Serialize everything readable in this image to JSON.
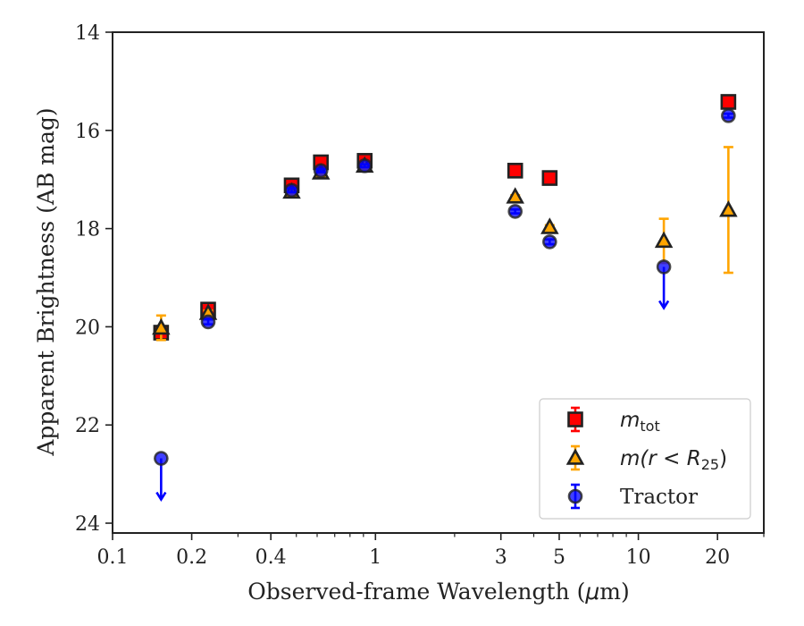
{
  "chart_data": {
    "type": "scatter",
    "title": "",
    "xlabel": "Observed-frame Wavelength (μm)",
    "xlabel_parts": {
      "before": "Observed-frame Wavelength (",
      "mu": "μ",
      "after": "m)"
    },
    "ylabel": "Apparent Brightness (AB mag)",
    "xscale": "log",
    "xlim": [
      0.1,
      30
    ],
    "ylim": [
      24.2,
      14
    ],
    "y_inverted": true,
    "x_ticks": [
      {
        "value": 0.1,
        "label": "0.1"
      },
      {
        "value": 0.2,
        "label": "0.2"
      },
      {
        "value": 0.4,
        "label": "0.4"
      },
      {
        "value": 1,
        "label": "1"
      },
      {
        "value": 3,
        "label": "3"
      },
      {
        "value": 5,
        "label": "5"
      },
      {
        "value": 10,
        "label": "10"
      },
      {
        "value": 20,
        "label": "20"
      }
    ],
    "y_ticks": [
      {
        "value": 14,
        "label": "14"
      },
      {
        "value": 16,
        "label": "16"
      },
      {
        "value": 18,
        "label": "18"
      },
      {
        "value": 20,
        "label": "20"
      },
      {
        "value": 22,
        "label": "22"
      },
      {
        "value": 24,
        "label": "24"
      }
    ],
    "grid": false,
    "legend_position": "lower-right",
    "series": [
      {
        "key": "mtot",
        "legend": {
          "base": "m",
          "sub": "tot",
          "text": ""
        },
        "marker": "square",
        "face_color": "#ff0000",
        "edge_color": "#222222",
        "error_color": "#ff0000",
        "points": [
          {
            "x": 0.153,
            "y": 20.12,
            "err": 0.12
          },
          {
            "x": 0.231,
            "y": 19.65,
            "err": 0.08
          },
          {
            "x": 0.48,
            "y": 17.12,
            "err": 0.05
          },
          {
            "x": 0.62,
            "y": 16.65,
            "err": 0.04
          },
          {
            "x": 0.91,
            "y": 16.62,
            "err": 0.04
          },
          {
            "x": 3.4,
            "y": 16.82,
            "err": 0.03
          },
          {
            "x": 4.6,
            "y": 16.97,
            "err": 0.03
          },
          {
            "x": 22.0,
            "y": 15.42,
            "err": 0.04
          }
        ]
      },
      {
        "key": "mr25",
        "legend": {
          "base": "m",
          "sub": "",
          "text": "(r < R",
          "sub2": "25",
          "close": ")"
        },
        "marker": "triangle",
        "face_color": "#ffa500",
        "edge_color": "#222222",
        "error_color": "#ffa500",
        "points": [
          {
            "x": 0.153,
            "y": 20.02,
            "err": 0.25
          },
          {
            "x": 0.231,
            "y": 19.72,
            "err": 0.05
          },
          {
            "x": 0.48,
            "y": 17.25,
            "err": 0.04
          },
          {
            "x": 0.62,
            "y": 16.86,
            "err": 0.03
          },
          {
            "x": 0.91,
            "y": 16.72,
            "err": 0.03
          },
          {
            "x": 3.4,
            "y": 17.35,
            "err": 0.03
          },
          {
            "x": 4.6,
            "y": 17.97,
            "err": 0.04
          },
          {
            "x": 12.5,
            "y": 18.25,
            "err": 0.45
          },
          {
            "x": 22.0,
            "y": 17.62,
            "err": 1.28
          }
        ]
      },
      {
        "key": "tractor",
        "legend": {
          "base": "",
          "sub": "",
          "text": "Tractor"
        },
        "marker": "circle",
        "face_color": "#0000ff",
        "edge_color": "#222222",
        "error_color": "#0000ff",
        "points": [
          {
            "x": 0.153,
            "y": 22.68,
            "upper_limit": true
          },
          {
            "x": 0.231,
            "y": 19.9,
            "err": 0.05
          },
          {
            "x": 0.48,
            "y": 17.22,
            "err": 0.04
          },
          {
            "x": 0.62,
            "y": 16.82,
            "err": 0.03
          },
          {
            "x": 0.91,
            "y": 16.72,
            "err": 0.03
          },
          {
            "x": 3.4,
            "y": 17.65,
            "err": 0.04
          },
          {
            "x": 4.6,
            "y": 18.27,
            "err": 0.05
          },
          {
            "x": 12.5,
            "y": 18.78,
            "upper_limit": true
          },
          {
            "x": 22.0,
            "y": 15.7,
            "err": 0.04
          }
        ]
      }
    ]
  }
}
